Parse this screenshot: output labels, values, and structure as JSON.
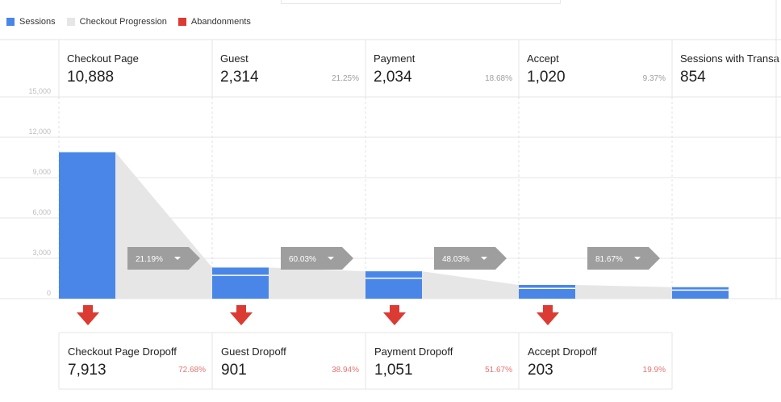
{
  "legend": [
    {
      "label": "Sessions",
      "color": "#4a86e8"
    },
    {
      "label": "Checkout Progression",
      "color": "#e6e6e6"
    },
    {
      "label": "Abandonments",
      "color": "#db3b33"
    }
  ],
  "chart_data": {
    "type": "bar",
    "ylim": [
      0,
      15000
    ],
    "y_ticks": [
      "0",
      "3,000",
      "6,000",
      "9,000",
      "12,000",
      "15,000"
    ],
    "y_tick_values": [
      0,
      3000,
      6000,
      9000,
      12000,
      15000
    ],
    "stages": [
      {
        "label": "Checkout Page",
        "value": 10888,
        "value_text": "10,888",
        "pct": ""
      },
      {
        "label": "Guest",
        "value": 2314,
        "value_text": "2,314",
        "pct": "21.25%"
      },
      {
        "label": "Payment",
        "value": 2034,
        "value_text": "2,034",
        "pct": "18.68%"
      },
      {
        "label": "Accept",
        "value": 1020,
        "value_text": "1,020",
        "pct": "9.37%"
      },
      {
        "label": "Sessions with Transa",
        "value": 854,
        "value_text": "854",
        "pct": ""
      }
    ],
    "conversions": [
      "21.19%",
      "60.03%",
      "48.03%",
      "81.67%"
    ],
    "dropoffs": [
      {
        "label": "Checkout Page Dropoff",
        "value_text": "7,913",
        "pct": "72.68%"
      },
      {
        "label": "Guest Dropoff",
        "value_text": "901",
        "pct": "38.94%"
      },
      {
        "label": "Payment Dropoff",
        "value_text": "1,051",
        "pct": "51.67%"
      },
      {
        "label": "Accept Dropoff",
        "value_text": "203",
        "pct": "19.9%"
      }
    ],
    "colors": {
      "sessions": "#4a86e8",
      "progression": "#e6e6e6",
      "abandon": "#db3b33",
      "conv_box": "#9e9e9e"
    }
  }
}
